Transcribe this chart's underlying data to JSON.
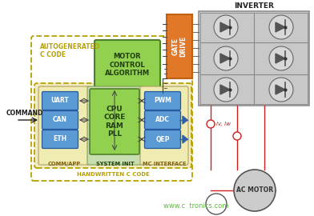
{
  "bg_color": "#ffffff",
  "title_inverter": "INVERTER",
  "title_command": "COMMAND",
  "title_autogen": "AUTOGENERATED\nC CODE",
  "title_handwritten": "HANDWRITTEN C CODE",
  "title_comm": "COMM/APP",
  "title_sysinit": "SYSTEM INIT",
  "title_mcinterface": "MC INTERFACE",
  "label_motor_ctrl": "MOTOR\nCONTROL\nALGORITHM",
  "label_cpu": "CPU\nCORE\nRAM\nPLL",
  "label_uart": "UART",
  "label_can": "CAN",
  "label_eth": "ETH",
  "label_pwm": "PWM",
  "label_adc": "ADC",
  "label_qep": "QEP",
  "label_gate_drive": "GATE\nDRIVE",
  "label_ac_motor": "AC MOTOR",
  "label_watermark": "www.c  tronics.com",
  "label_iv_iw": "Iv, Iw",
  "color_outer_dashed": "#b8a000",
  "color_blue_box": "#5b9bd5",
  "color_green_box": "#92d050",
  "color_green_bg": "#c8ddb0",
  "color_yellow_bg": "#f0ecc0",
  "color_orange_box": "#e07828",
  "color_gray_inverter": "#c8c8c8",
  "color_motor_gray": "#cccccc",
  "color_red_wire": "#cc2020",
  "color_arrow": "#404040",
  "color_text_dark": "#202020",
  "color_watermark": "#60b840"
}
